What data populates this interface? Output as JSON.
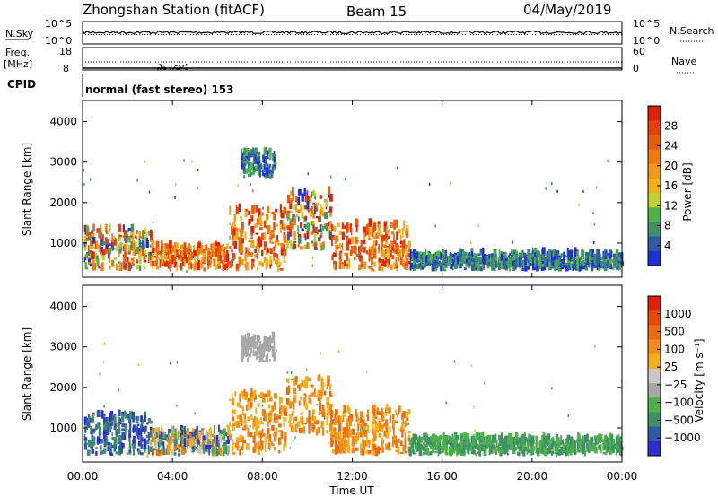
{
  "header": {
    "station": "Zhongshan Station (fitACF)",
    "beam": "Beam 15",
    "date": "04/May/2019"
  },
  "panels": {
    "nsky": {
      "label": "N.Sky",
      "top_tick": "10^5",
      "bottom_tick": "10^0",
      "right_top_tick": "10^5",
      "right_bottom_tick": "10^0",
      "right_label": "N.Search"
    },
    "freq": {
      "label_line1": "Freq.",
      "label_line2": "[MHz]",
      "top_tick": "18",
      "bottom_tick": "8",
      "right_top_tick": "60",
      "right_bottom_tick": "0",
      "right_label": "Nave"
    },
    "cpid": {
      "label": "CPID",
      "mode_text": "normal (fast stereo) 153"
    }
  },
  "colors": {
    "power_scale": [
      "#1f2fd6",
      "#2e5aa8",
      "#3f8f6a",
      "#4fb14a",
      "#bcd32c",
      "#f2b01a",
      "#f59a14",
      "#f07a10",
      "#e85d0c",
      "#e8400a",
      "#e02008"
    ],
    "velocity_scale": [
      "#2f2fd0",
      "#2e5aa8",
      "#3f8f6a",
      "#4fb14a",
      "#a8a8a8",
      "#c8c8c8",
      "#f2b01a",
      "#f58a14",
      "#f06a10",
      "#e84a0c",
      "#e02008"
    ],
    "ground_scatter": "#b4b4b4"
  },
  "chart_data": [
    {
      "type": "heatmap",
      "title": "Power",
      "ylabel": "Slant Range [km]",
      "xlabel": "Time UT",
      "ylim": [
        180,
        4500
      ],
      "xlim": [
        0,
        24
      ],
      "y_ticks": [
        "1000",
        "2000",
        "3000",
        "4000"
      ],
      "x_ticks": [
        "00:00",
        "04:00",
        "08:00",
        "12:00",
        "16:00",
        "20:00",
        "00:00"
      ],
      "colorbar": {
        "label": "Power [dB]",
        "ticks": [
          "4",
          "8",
          "12",
          "16",
          "20",
          "24",
          "28"
        ],
        "range": [
          0,
          32
        ]
      },
      "regions": [
        {
          "t": [
            0.0,
            3.0
          ],
          "r": [
            300,
            1300
          ],
          "level": "mixed"
        },
        {
          "t": [
            3.0,
            6.5
          ],
          "r": [
            300,
            900
          ],
          "level": "high"
        },
        {
          "t": [
            6.5,
            9.0
          ],
          "r": [
            300,
            1800
          ],
          "level": "high"
        },
        {
          "t": [
            9.0,
            11.0
          ],
          "r": [
            800,
            2200
          ],
          "level": "mixed"
        },
        {
          "t": [
            11.0,
            14.5
          ],
          "r": [
            300,
            1400
          ],
          "level": "high"
        },
        {
          "t": [
            7.0,
            8.5
          ],
          "r": [
            2600,
            3200
          ],
          "level": "low"
        },
        {
          "t": [
            14.5,
            24.0
          ],
          "r": [
            300,
            700
          ],
          "level": "low"
        }
      ]
    },
    {
      "type": "heatmap",
      "title": "Velocity",
      "ylabel": "Slant Range [km]",
      "xlabel": "Time UT",
      "ylim": [
        180,
        4500
      ],
      "xlim": [
        0,
        24
      ],
      "y_ticks": [
        "1000",
        "2000",
        "3000",
        "4000"
      ],
      "x_ticks": [
        "00:00",
        "04:00",
        "08:00",
        "12:00",
        "16:00",
        "20:00",
        "00:00"
      ],
      "colorbar": {
        "label": "Velocity [m s⁻¹]",
        "ticks": [
          "1000",
          "500",
          "100",
          "25",
          "−25",
          "−100",
          "−500",
          "−1000"
        ]
      },
      "regions": [
        {
          "t": [
            0.0,
            3.0
          ],
          "r": [
            300,
            1300
          ],
          "level": "towards"
        },
        {
          "t": [
            3.0,
            6.5
          ],
          "r": [
            300,
            900
          ],
          "level": "mixed"
        },
        {
          "t": [
            6.5,
            9.0
          ],
          "r": [
            300,
            1800
          ],
          "level": "away"
        },
        {
          "t": [
            9.0,
            11.0
          ],
          "r": [
            800,
            2200
          ],
          "level": "away"
        },
        {
          "t": [
            11.0,
            14.5
          ],
          "r": [
            300,
            1400
          ],
          "level": "away"
        },
        {
          "t": [
            7.0,
            8.5
          ],
          "r": [
            2600,
            3200
          ],
          "level": "ground"
        },
        {
          "t": [
            14.5,
            24.0
          ],
          "r": [
            300,
            700
          ],
          "level": "slow"
        }
      ]
    }
  ]
}
